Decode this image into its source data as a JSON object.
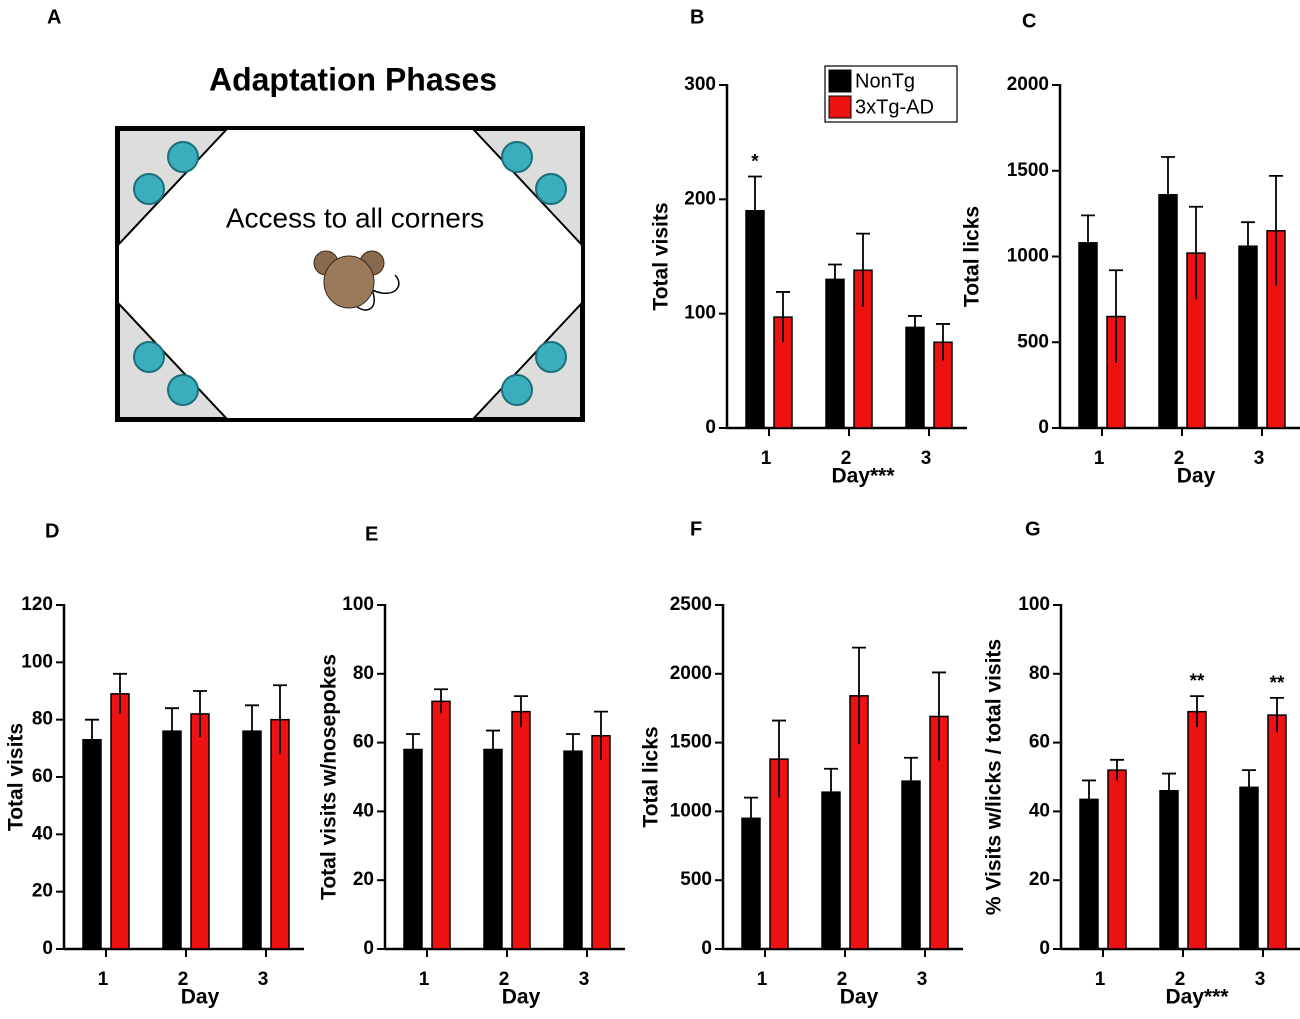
{
  "diagram": {
    "label": "A",
    "title": "Adaptation Phases",
    "text": "Access to all corners"
  },
  "chart_data": [
    {
      "type": "bar",
      "label": "B",
      "ylabel": "Total visits",
      "xlabel": "Day***",
      "legend": "top-right",
      "categories": [
        "1",
        "2",
        "3"
      ],
      "ylim": [
        0,
        300
      ],
      "yticks": [
        0,
        100,
        200,
        300
      ],
      "series": [
        {
          "name": "NonTg",
          "color": "#000000",
          "values": [
            190,
            130,
            88
          ],
          "errors": [
            30,
            13,
            10
          ],
          "annotations": [
            "*",
            null,
            null
          ]
        },
        {
          "name": "3xTg-AD",
          "color": "#ee1111",
          "values": [
            97,
            138,
            75
          ],
          "errors": [
            22,
            32,
            16
          ],
          "annotations": [
            null,
            null,
            null
          ]
        }
      ]
    },
    {
      "type": "bar",
      "label": "C",
      "ylabel": "Total licks",
      "xlabel": "Day",
      "categories": [
        "1",
        "2",
        "3"
      ],
      "ylim": [
        0,
        2000
      ],
      "yticks": [
        0,
        500,
        1000,
        1500,
        2000
      ],
      "series": [
        {
          "name": "NonTg",
          "color": "#000000",
          "values": [
            1080,
            1360,
            1060
          ],
          "errors": [
            160,
            220,
            140
          ],
          "annotations": [
            null,
            null,
            null
          ]
        },
        {
          "name": "3xTg-AD",
          "color": "#ee1111",
          "values": [
            650,
            1020,
            1150
          ],
          "errors": [
            270,
            270,
            320
          ],
          "annotations": [
            null,
            null,
            null
          ]
        }
      ]
    },
    {
      "type": "bar",
      "label": "D",
      "ylabel": "Total visits",
      "xlabel": "Day",
      "categories": [
        "1",
        "2",
        "3"
      ],
      "ylim": [
        0,
        120
      ],
      "yticks": [
        0,
        20,
        40,
        60,
        80,
        100,
        120
      ],
      "series": [
        {
          "name": "NonTg",
          "color": "#000000",
          "values": [
            73,
            76,
            76
          ],
          "errors": [
            7,
            8,
            9
          ],
          "annotations": [
            null,
            null,
            null
          ]
        },
        {
          "name": "3xTg-AD",
          "color": "#ee1111",
          "values": [
            89,
            82,
            80
          ],
          "errors": [
            7,
            8,
            12
          ],
          "annotations": [
            null,
            null,
            null
          ]
        }
      ]
    },
    {
      "type": "bar",
      "label": "E",
      "ylabel": "Total visits w/nosepokes",
      "xlabel": "Day",
      "categories": [
        "1",
        "2",
        "3"
      ],
      "ylim": [
        0,
        100
      ],
      "yticks": [
        0,
        20,
        40,
        60,
        80,
        100
      ],
      "series": [
        {
          "name": "NonTg",
          "color": "#000000",
          "values": [
            58,
            58,
            57.5
          ],
          "errors": [
            4.5,
            5.5,
            5
          ],
          "annotations": [
            null,
            null,
            null
          ]
        },
        {
          "name": "3xTg-AD",
          "color": "#ee1111",
          "values": [
            72,
            69,
            62
          ],
          "errors": [
            3.5,
            4.5,
            7
          ],
          "annotations": [
            null,
            null,
            null
          ]
        }
      ]
    },
    {
      "type": "bar",
      "label": "F",
      "ylabel": "Total licks",
      "xlabel": "Day",
      "categories": [
        "1",
        "2",
        "3"
      ],
      "ylim": [
        0,
        2500
      ],
      "yticks": [
        0,
        500,
        1000,
        1500,
        2000,
        2500
      ],
      "series": [
        {
          "name": "NonTg",
          "color": "#000000",
          "values": [
            950,
            1140,
            1220
          ],
          "errors": [
            150,
            170,
            170
          ],
          "annotations": [
            null,
            null,
            null
          ]
        },
        {
          "name": "3xTg-AD",
          "color": "#ee1111",
          "values": [
            1380,
            1840,
            1690
          ],
          "errors": [
            280,
            350,
            320
          ],
          "annotations": [
            null,
            null,
            null
          ]
        }
      ]
    },
    {
      "type": "bar",
      "label": "G",
      "ylabel": "% Visits w/licks / total visits",
      "xlabel": "Day***",
      "categories": [
        "1",
        "2",
        "3"
      ],
      "ylim": [
        0,
        100
      ],
      "yticks": [
        0,
        20,
        40,
        60,
        80,
        100
      ],
      "series": [
        {
          "name": "NonTg",
          "color": "#000000",
          "values": [
            43.5,
            46,
            47
          ],
          "errors": [
            5.5,
            5,
            5
          ],
          "annotations": [
            null,
            null,
            null
          ]
        },
        {
          "name": "3xTg-AD",
          "color": "#ee1111",
          "values": [
            52,
            69,
            68
          ],
          "errors": [
            3,
            4.5,
            5
          ],
          "annotations": [
            null,
            "**",
            "**"
          ]
        }
      ]
    }
  ]
}
